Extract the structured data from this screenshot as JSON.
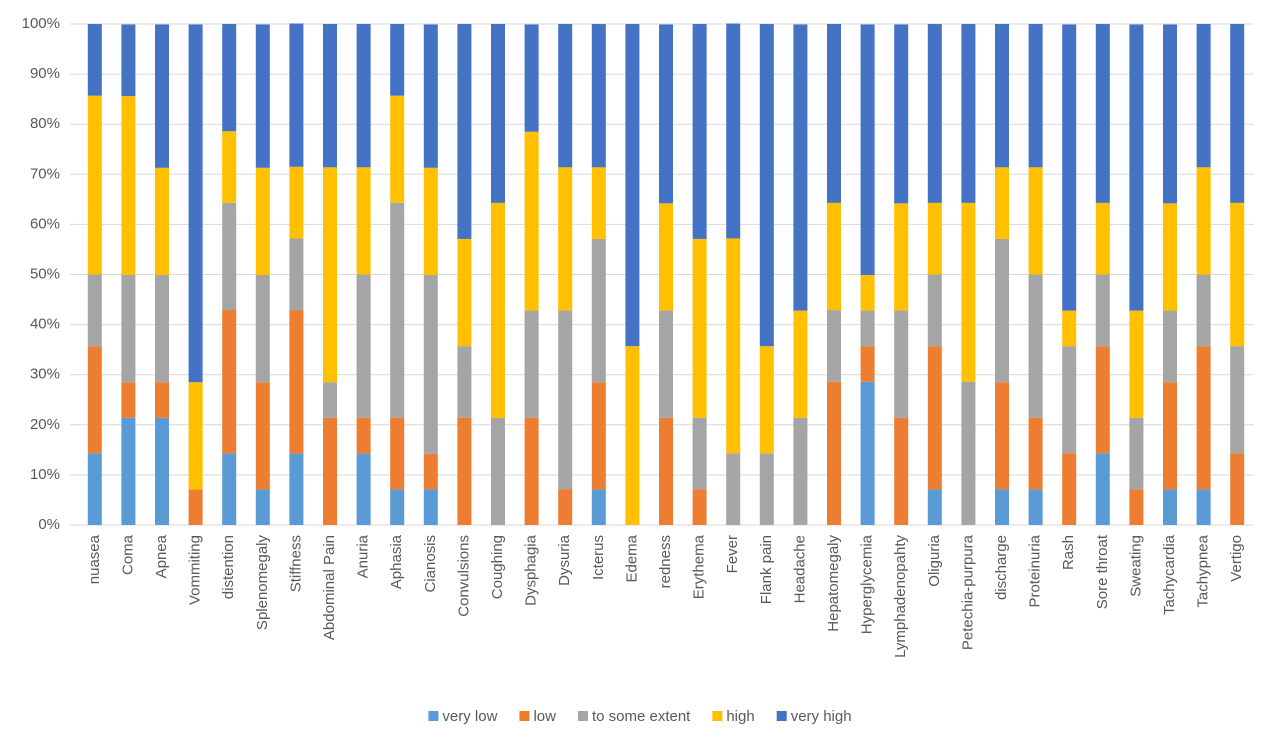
{
  "chart_data": {
    "type": "stacked_bar",
    "categories": [
      "nuasea",
      "Coma",
      "Apnea",
      "Vommiting",
      "distention",
      "Splenomegaly",
      "Stiffness",
      "Abdominal Pain",
      "Anuria",
      "Aphasia",
      "Cianosis",
      "Convulsions",
      "Coughing",
      "Dysphagia",
      "Dysuria",
      "Icterus",
      "Edema",
      "redness",
      "Erythema",
      "Fever",
      "Flank pain",
      "Headache",
      "Hepatomegaly",
      "Hyperglycemia",
      "Lymphadenopahty",
      "Oliguria",
      "Petechia-purpura",
      "discharge",
      "Proteinuria",
      "Rash",
      "Sore throat",
      "Sweating",
      "Tachycardia",
      "Tachypnea",
      "Vertigo"
    ],
    "series": [
      {
        "name": "very low",
        "color": "#5b9bd5",
        "values": [
          14.3,
          21.4,
          21.4,
          0,
          14.3,
          7.1,
          14.3,
          0,
          14.3,
          7.1,
          7.1,
          0,
          0,
          0,
          0,
          7.1,
          0,
          0,
          0,
          0,
          0,
          0,
          0,
          28.6,
          0,
          7.1,
          0,
          7.1,
          7.1,
          0,
          14.3,
          0,
          7.1,
          7.1,
          0
        ]
      },
      {
        "name": "low",
        "color": "#ed7d31",
        "values": [
          21.4,
          7.1,
          7.1,
          7.1,
          28.6,
          21.4,
          28.6,
          21.4,
          7.1,
          14.3,
          7.1,
          21.4,
          0,
          21.4,
          7.1,
          21.4,
          0,
          21.4,
          7.1,
          0,
          0,
          0,
          28.6,
          7.1,
          21.4,
          28.6,
          0,
          21.4,
          14.3,
          14.3,
          21.4,
          7.1,
          21.4,
          28.6,
          14.3
        ]
      },
      {
        "name": "to some extent",
        "color": "#a5a5a5",
        "values": [
          14.3,
          21.4,
          21.4,
          0,
          21.4,
          21.4,
          14.3,
          7.1,
          28.6,
          42.9,
          35.7,
          14.3,
          21.4,
          21.4,
          35.7,
          28.6,
          0,
          21.4,
          14.3,
          14.3,
          14.3,
          21.4,
          14.3,
          7.1,
          21.4,
          14.3,
          28.6,
          28.6,
          28.6,
          21.4,
          14.3,
          14.3,
          14.3,
          14.3,
          21.4
        ]
      },
      {
        "name": "high",
        "color": "#ffc000",
        "values": [
          35.7,
          35.7,
          21.4,
          21.4,
          14.3,
          21.4,
          14.3,
          42.9,
          21.4,
          21.4,
          21.4,
          21.4,
          42.9,
          35.7,
          28.6,
          14.3,
          35.7,
          21.4,
          35.7,
          42.9,
          21.4,
          21.4,
          21.4,
          7.1,
          21.4,
          14.3,
          35.7,
          14.3,
          21.4,
          7.1,
          14.3,
          21.4,
          21.4,
          21.4,
          28.6
        ]
      },
      {
        "name": "very high",
        "color": "#4472c4",
        "values": [
          14.3,
          14.3,
          28.6,
          71.4,
          21.4,
          28.6,
          28.6,
          28.6,
          28.6,
          14.3,
          28.6,
          42.9,
          35.7,
          21.4,
          28.6,
          28.6,
          64.3,
          35.7,
          42.9,
          42.9,
          64.3,
          57.1,
          35.7,
          50,
          35.7,
          35.7,
          35.7,
          28.6,
          28.6,
          57.1,
          35.7,
          57.1,
          35.7,
          28.6,
          35.7
        ]
      }
    ],
    "ylim": [
      0,
      100
    ],
    "yticks": [
      {
        "value": 0,
        "label": "0%"
      },
      {
        "value": 10,
        "label": "10%"
      },
      {
        "value": 20,
        "label": "20%"
      },
      {
        "value": 30,
        "label": "30%"
      },
      {
        "value": 40,
        "label": "40%"
      },
      {
        "value": 50,
        "label": "50%"
      },
      {
        "value": 60,
        "label": "60%"
      },
      {
        "value": 70,
        "label": "70%"
      },
      {
        "value": 80,
        "label": "80%"
      },
      {
        "value": 90,
        "label": "90%"
      },
      {
        "value": 100,
        "label": "100%"
      }
    ],
    "grid": true,
    "legend": "bottom"
  }
}
